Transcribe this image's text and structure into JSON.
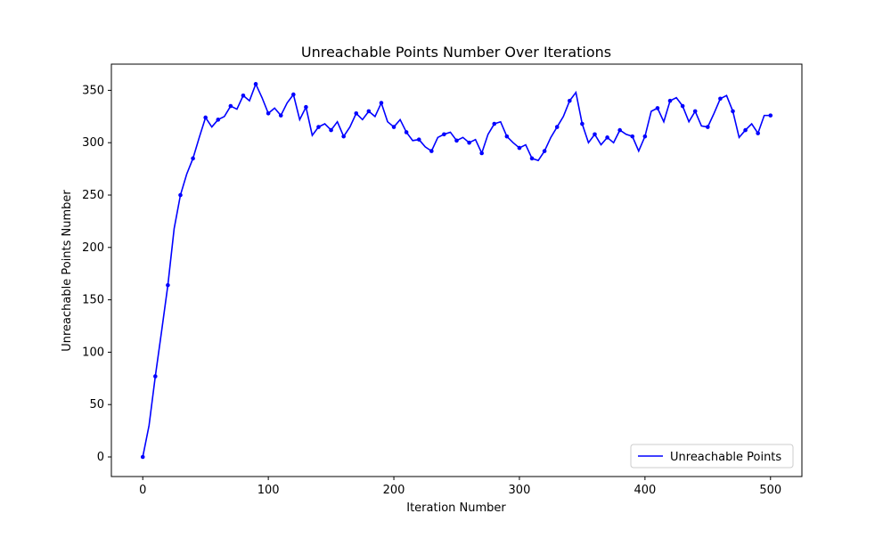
{
  "chart_data": {
    "type": "line",
    "title": "Unreachable Points Number Over Iterations",
    "x_label": "Iteration Number",
    "y_label": "Unreachable Points Number",
    "x": [
      0,
      5,
      10,
      15,
      20,
      25,
      30,
      35,
      40,
      45,
      50,
      55,
      60,
      65,
      70,
      75,
      80,
      85,
      90,
      95,
      100,
      105,
      110,
      115,
      120,
      125,
      130,
      135,
      140,
      145,
      150,
      155,
      160,
      165,
      170,
      175,
      180,
      185,
      190,
      195,
      200,
      205,
      210,
      215,
      220,
      225,
      230,
      235,
      240,
      245,
      250,
      255,
      260,
      265,
      270,
      275,
      280,
      285,
      290,
      295,
      300,
      305,
      310,
      315,
      320,
      325,
      330,
      335,
      340,
      345,
      350,
      355,
      360,
      365,
      370,
      375,
      380,
      385,
      390,
      395,
      400,
      405,
      410,
      415,
      420,
      425,
      430,
      435,
      440,
      445,
      450,
      455,
      460,
      465,
      470,
      475,
      480,
      485,
      490,
      495,
      500
    ],
    "series": [
      {
        "name": "Unreachable Points",
        "color": "#0000ff",
        "values": [
          0,
          30,
          77,
          120,
          164,
          218,
          250,
          270,
          285,
          305,
          324,
          315,
          322,
          325,
          335,
          332,
          345,
          340,
          356,
          343,
          328,
          333,
          326,
          338,
          346,
          322,
          334,
          307,
          315,
          318,
          312,
          320,
          306,
          315,
          328,
          322,
          330,
          325,
          338,
          320,
          315,
          322,
          310,
          302,
          303,
          296,
          292,
          305,
          308,
          310,
          302,
          305,
          300,
          303,
          290,
          308,
          318,
          320,
          306,
          300,
          295,
          298,
          285,
          283,
          292,
          305,
          315,
          325,
          340,
          348,
          318,
          300,
          308,
          298,
          305,
          300,
          312,
          308,
          306,
          292,
          306,
          330,
          333,
          320,
          340,
          343,
          335,
          320,
          330,
          316,
          315,
          328,
          342,
          345,
          330,
          305,
          312,
          318,
          309,
          326,
          326
        ]
      }
    ],
    "markevery": 2,
    "xlim": [
      -25,
      525
    ],
    "ylim": [
      -18.7,
      375
    ],
    "xticks": [
      0,
      100,
      200,
      300,
      400,
      500
    ],
    "yticks": [
      0,
      50,
      100,
      150,
      200,
      250,
      300,
      350
    ],
    "legend": "lower right"
  }
}
